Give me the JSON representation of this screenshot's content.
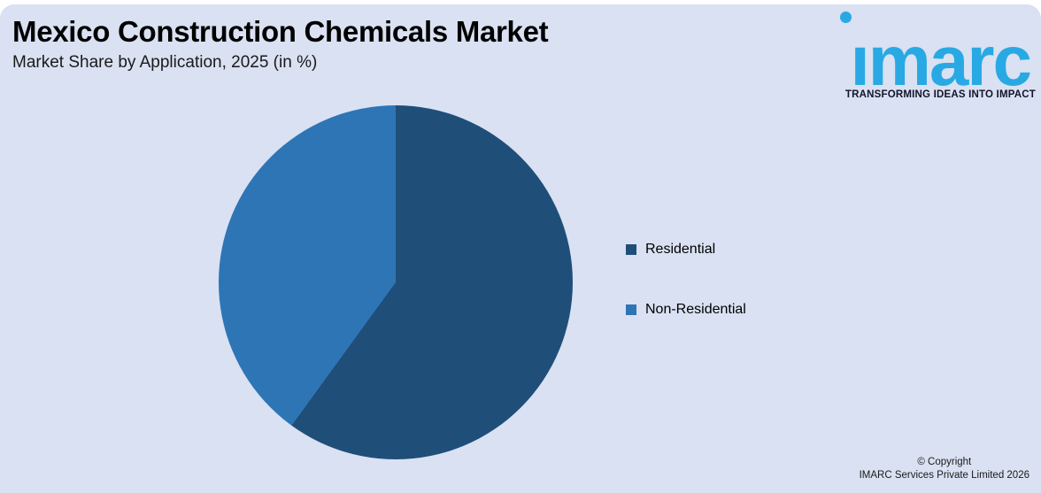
{
  "page": {
    "header": {
      "title": "Mexico Construction Chemicals Market",
      "subtitle": "Market Share by Application, 2025 (in %)"
    },
    "logo": {
      "wordmark": "imarc",
      "wordmark_display": "ımarc",
      "tagline": "TRANSFORMING IDEAS INTO IMPACT"
    },
    "footer": {
      "line1": "© Copyright",
      "line2": "IMARC Services Private Limited 2026"
    }
  },
  "chart_data": {
    "type": "pie",
    "title": "Mexico Construction Chemicals Market",
    "subtitle": "Market Share by Application, 2025 (in %)",
    "unit": "%",
    "series": [
      {
        "name": "Residential",
        "value": 60,
        "color": "#1F4E79"
      },
      {
        "name": "Non-Residential",
        "value": 40,
        "color": "#2E75B6"
      }
    ],
    "start_angle_deg": 0,
    "direction": "clockwise",
    "legend_position": "right",
    "data_labels_shown": false
  },
  "colors": {
    "page_background": "#FFFFFF",
    "card_background": "#D9E1F2",
    "brand_blue": "#29A9E3",
    "tagline_text": "#14142B",
    "title_text": "#000000",
    "body_text": "#1A1A1A",
    "slice_residential": "#1F4E79",
    "slice_non_residential": "#2E75B6"
  }
}
